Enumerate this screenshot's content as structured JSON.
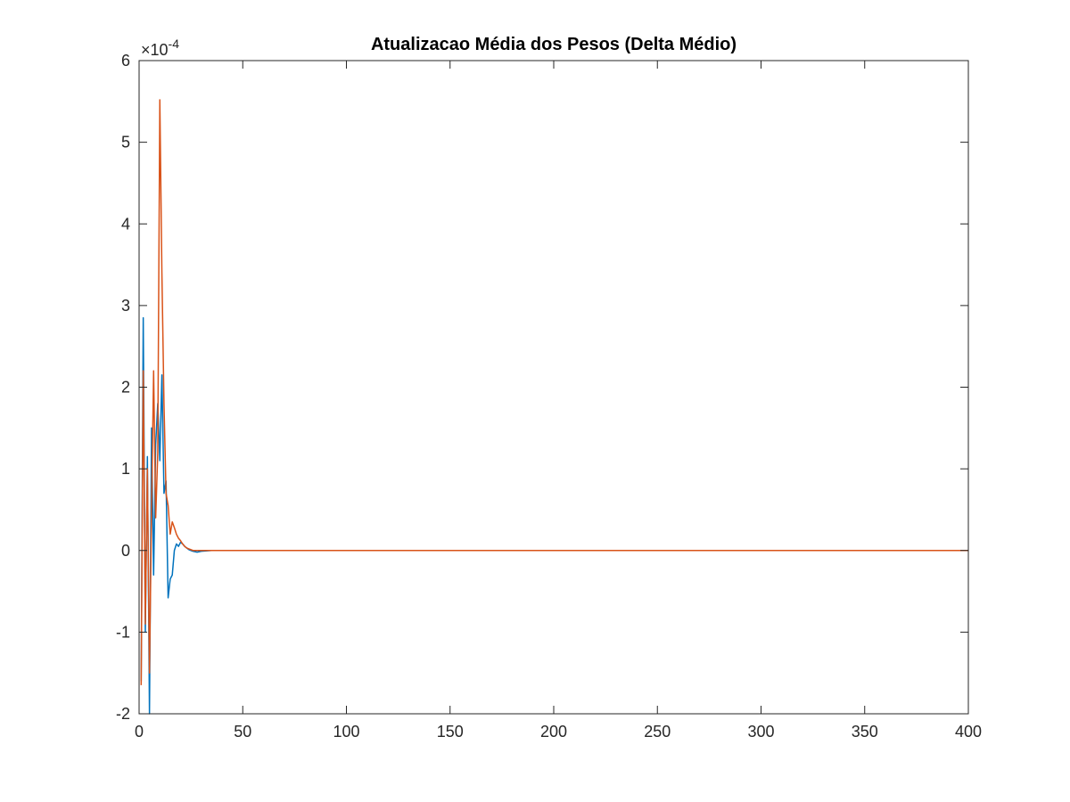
{
  "chart_data": {
    "type": "line",
    "title": "Atualizacao Média dos Pesos (Delta Médio)",
    "xlabel": "",
    "ylabel": "",
    "y_exponent_label": "×10",
    "y_exponent_power": "-4",
    "xlim": [
      0,
      400
    ],
    "ylim": [
      -2,
      6
    ],
    "xticks": [
      0,
      50,
      100,
      150,
      200,
      250,
      300,
      350,
      400
    ],
    "yticks": [
      -2,
      -1,
      0,
      1,
      2,
      3,
      4,
      5,
      6
    ],
    "grid": false,
    "legend": "none",
    "series": [
      {
        "color": "#0072BD",
        "x": [
          1,
          2,
          3,
          4,
          5,
          6,
          7,
          8,
          9,
          10,
          11,
          12,
          13,
          14,
          15,
          16,
          17,
          18,
          19,
          20,
          21,
          22,
          23,
          24,
          25,
          26,
          28,
          30,
          35,
          40,
          400
        ],
        "y": [
          -1.6,
          2.85,
          -1.0,
          1.15,
          -2.0,
          1.5,
          -0.3,
          1.3,
          1.8,
          1.1,
          2.15,
          0.7,
          0.85,
          -0.58,
          -0.35,
          -0.3,
          0.0,
          0.08,
          0.05,
          0.1,
          0.08,
          0.05,
          0.03,
          0.01,
          0.0,
          -0.01,
          -0.02,
          -0.01,
          0.0,
          0.0,
          0.0
        ]
      },
      {
        "color": "#D95319",
        "x": [
          1,
          2,
          3,
          4,
          5,
          6,
          7,
          8,
          9,
          10,
          11,
          12,
          13,
          14,
          15,
          16,
          17,
          18,
          19,
          20,
          21,
          22,
          23,
          24,
          25,
          26,
          28,
          30,
          35,
          40,
          400
        ],
        "y": [
          -1.65,
          2.2,
          -0.9,
          1.0,
          -1.5,
          0.5,
          2.2,
          0.4,
          1.2,
          5.52,
          3.4,
          1.8,
          0.7,
          0.55,
          0.2,
          0.35,
          0.28,
          0.2,
          0.15,
          0.12,
          0.08,
          0.05,
          0.03,
          0.02,
          0.01,
          0.0,
          0.0,
          0.0,
          0.0,
          0.0,
          0.0
        ]
      }
    ]
  }
}
